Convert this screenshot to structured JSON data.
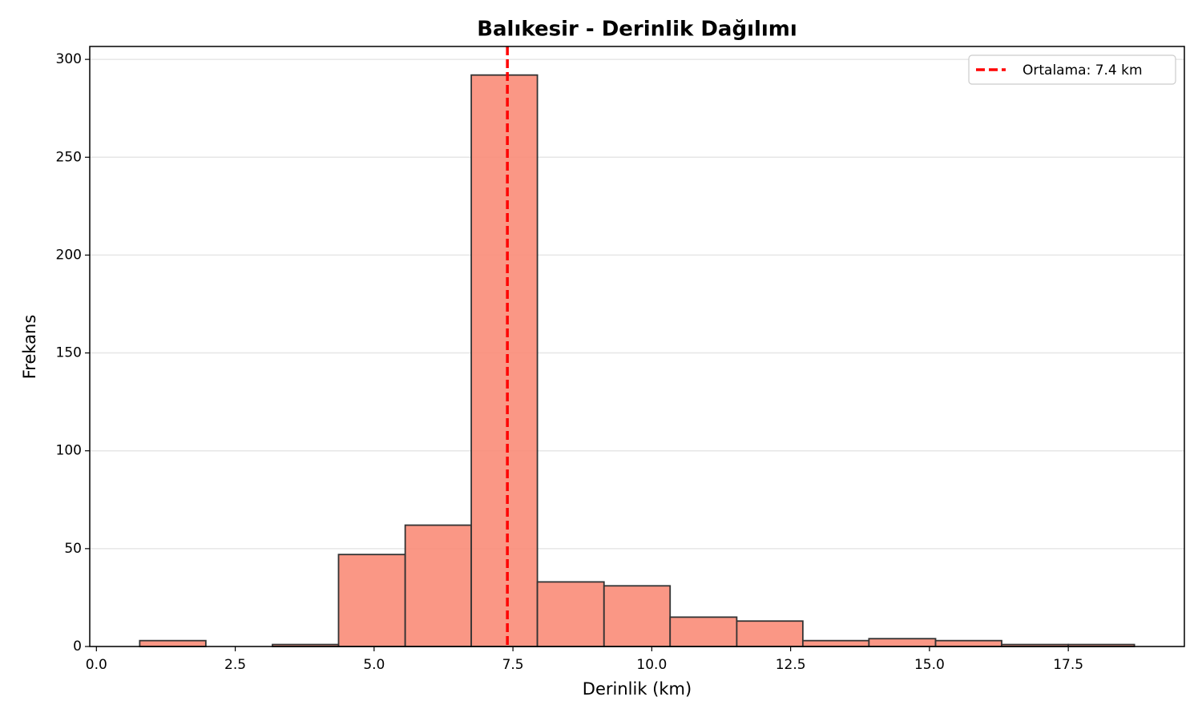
{
  "chart_data": {
    "type": "histogram",
    "title": "Balıkesir - Derinlik Dağılımı",
    "x_label": "Derinlik (km)",
    "y_label": "Frekans",
    "bins": [
      0.78,
      1.97,
      3.17,
      4.36,
      5.56,
      6.75,
      7.94,
      9.14,
      10.33,
      11.53,
      12.72,
      13.91,
      15.11,
      16.3,
      17.5,
      18.69
    ],
    "counts": [
      3,
      0,
      1,
      47,
      62,
      292,
      33,
      31,
      15,
      13,
      3,
      4,
      3,
      1,
      1
    ],
    "color": "#fa8c78",
    "edge_color": "#333333",
    "mean": 7.4,
    "mean_label": "Ortalama: 7.4 km",
    "mean_color": "#ff0000",
    "xlim": [
      -0.12,
      19.59
    ],
    "ylim": [
      0,
      306.6
    ],
    "xticks": [
      {
        "value": 0,
        "label": "0.0"
      },
      {
        "value": 2.5,
        "label": "2.5"
      },
      {
        "value": 5,
        "label": "5.0"
      },
      {
        "value": 7.5,
        "label": "7.5"
      },
      {
        "value": 10,
        "label": "10.0"
      },
      {
        "value": 12.5,
        "label": "12.5"
      },
      {
        "value": 15,
        "label": "15.0"
      },
      {
        "value": 17.5,
        "label": "17.5"
      }
    ],
    "yticks": [
      0,
      50,
      100,
      150,
      200,
      250,
      300
    ],
    "grid": true,
    "legend": "upper right"
  }
}
